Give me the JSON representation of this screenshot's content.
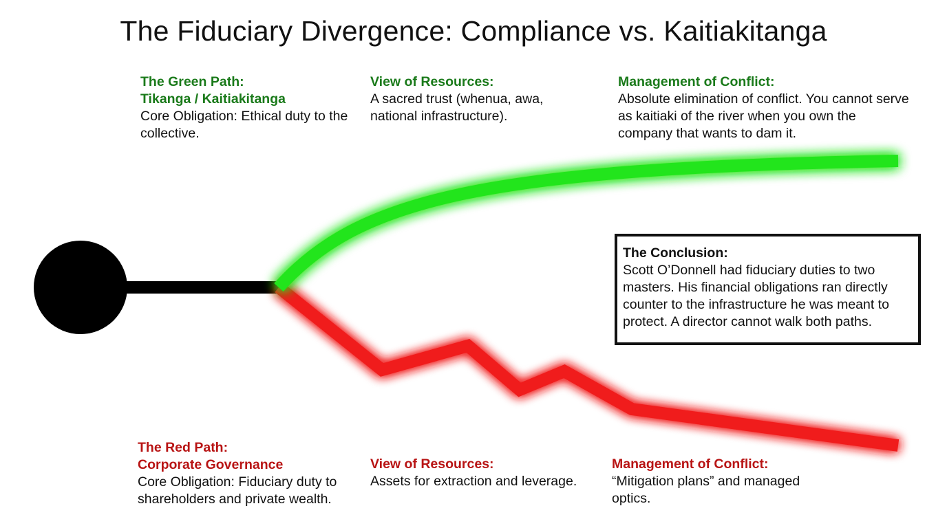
{
  "title": "The Fiduciary Divergence: Compliance vs. Kaitiakitanga",
  "colors": {
    "green_path": "#22e51a",
    "green_text": "#1a7a1a",
    "red_path": "#f01a1a",
    "red_text": "#b81414",
    "node": "#000000"
  },
  "green": {
    "path": {
      "heading_line1": "The Green Path:",
      "heading_line2": "Tikanga / Kaitiakitanga",
      "body": "Core Obligation: Ethical duty to the collective."
    },
    "resources": {
      "heading": "View of Resources:",
      "body": "A sacred trust (whenua, awa, national infrastructure)."
    },
    "conflict": {
      "heading": "Management of Conflict:",
      "body": "Absolute elimination of conflict. You cannot serve as kaitiaki of the river when you own the company that wants to dam it."
    }
  },
  "red": {
    "path": {
      "heading_line1": "The Red Path:",
      "heading_line2": "Corporate Governance",
      "body": "Core Obligation: Fiduciary duty to shareholders and private wealth."
    },
    "resources": {
      "heading": "View of Resources:",
      "body": "Assets for extraction and leverage."
    },
    "conflict": {
      "heading": "Management of Conflict:",
      "body": "“Mitigation plans” and managed optics."
    }
  },
  "conclusion": {
    "heading": "The Conclusion:",
    "body": "Scott O’Donnell had fiduciary duties to two masters. His financial obligations ran directly counter to the infrastructure he was meant to protect. A director cannot walk both paths."
  }
}
